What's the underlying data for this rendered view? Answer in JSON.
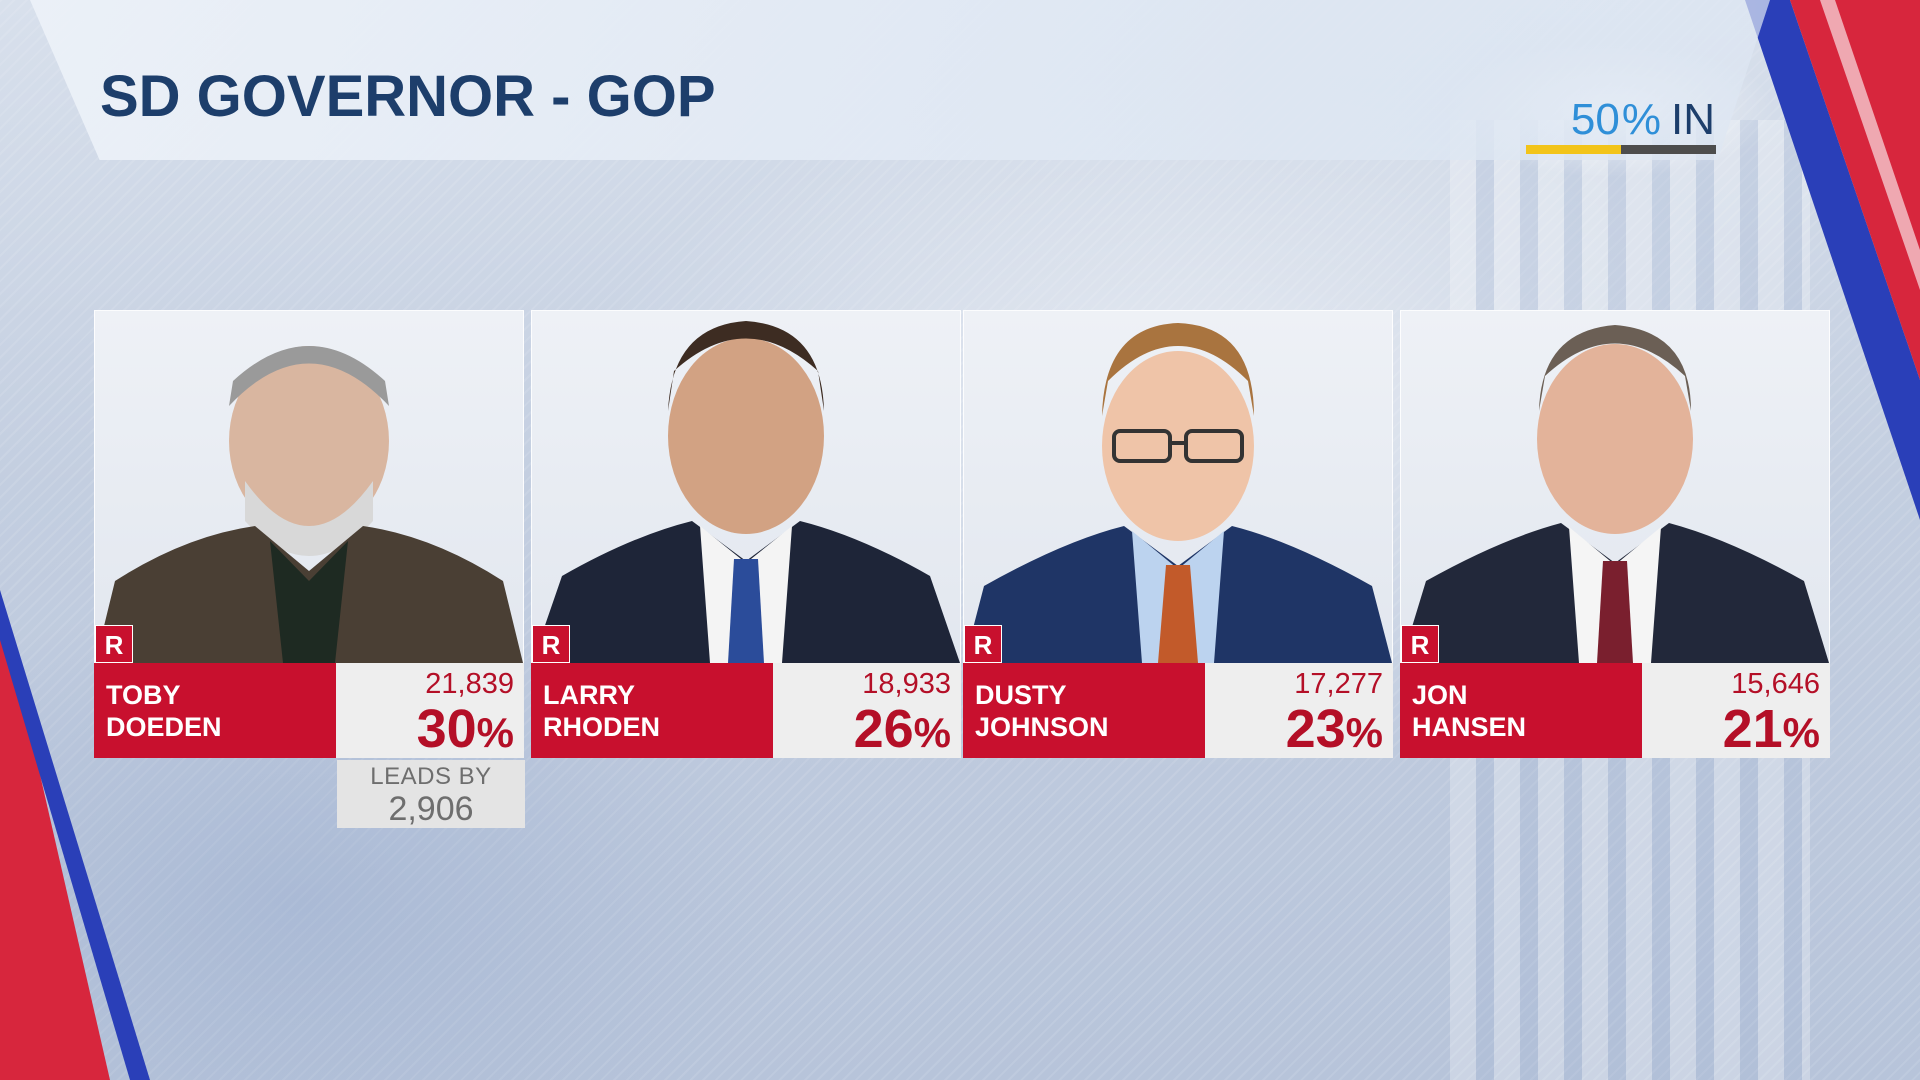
{
  "title": "SD GOVERNOR - GOP",
  "reporting": {
    "percent": "50",
    "percent_symbol": "%",
    "label": "IN",
    "fraction": 0.5
  },
  "candidates": [
    {
      "first": "TOBY",
      "last": "DOEDEN",
      "party": "R",
      "votes": "21,839",
      "percent": "30",
      "percent_symbol": "%"
    },
    {
      "first": "LARRY",
      "last": "RHODEN",
      "party": "R",
      "votes": "18,933",
      "percent": "26",
      "percent_symbol": "%"
    },
    {
      "first": "DUSTY",
      "last": "JOHNSON",
      "party": "R",
      "votes": "17,277",
      "percent": "23",
      "percent_symbol": "%"
    },
    {
      "first": "JON",
      "last": "HANSEN",
      "party": "R",
      "votes": "15,646",
      "percent": "21",
      "percent_symbol": "%"
    }
  ],
  "leader": {
    "label": "LEADS BY",
    "margin": "2,906"
  },
  "colors": {
    "party_red": "#c8102e",
    "title_navy": "#1d3e6b",
    "reporting_blue": "#2f8fd8",
    "reporting_yellow": "#f2c41a"
  }
}
